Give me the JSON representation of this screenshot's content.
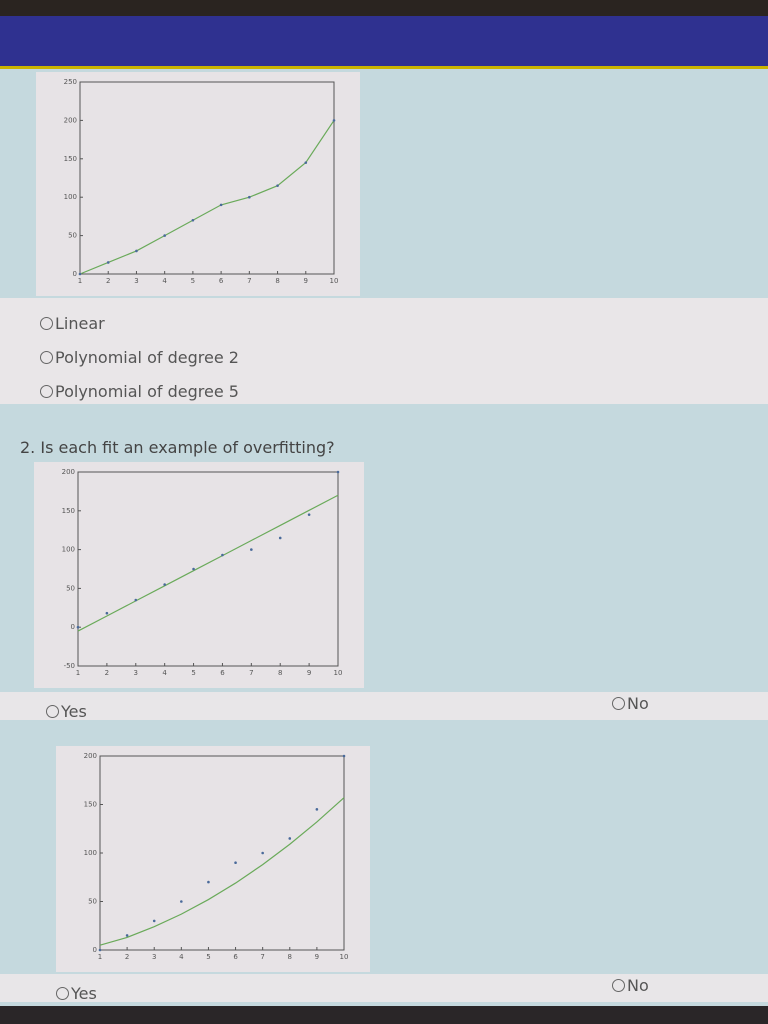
{
  "question1": {
    "options": [
      "Linear",
      "Polynomial of degree 2",
      "Polynomial of degree 5"
    ]
  },
  "question2": {
    "title": "2. Is each fit an example of overfitting?",
    "fits": [
      {
        "yes_label": "Yes",
        "no_label": "No"
      },
      {
        "yes_label": "Yes",
        "no_label": "No"
      }
    ]
  },
  "colors": {
    "fit_line": "#6aaa5a",
    "points": "#4a6a9a",
    "header": "#2f3190",
    "accent_line": "#c9b400"
  },
  "chart_data": [
    {
      "type": "line",
      "x": [
        1,
        2,
        3,
        4,
        5,
        6,
        7,
        8,
        9,
        10
      ],
      "points": [
        0,
        15,
        30,
        50,
        70,
        90,
        100,
        115,
        145,
        200
      ],
      "fit": [
        0,
        15,
        30,
        50,
        70,
        90,
        100,
        115,
        145,
        200
      ],
      "xlim": [
        1,
        10
      ],
      "ylim": [
        0,
        250
      ],
      "yticks": [
        "0",
        "50",
        "100",
        "150",
        "200",
        "250"
      ],
      "xticks": [
        "1",
        "2",
        "3",
        "4",
        "5",
        "6",
        "7",
        "8",
        "9",
        "10"
      ],
      "grid": false
    },
    {
      "type": "line",
      "x": [
        1,
        2,
        3,
        4,
        5,
        6,
        7,
        8,
        9,
        10
      ],
      "points": [
        0,
        18,
        35,
        55,
        75,
        93,
        100,
        115,
        145,
        200
      ],
      "fit": [
        -5,
        14.4,
        33.9,
        53.3,
        72.8,
        92.2,
        111.7,
        131.1,
        150.6,
        170
      ],
      "xlim": [
        1,
        10
      ],
      "ylim": [
        -50,
        200
      ],
      "yticks": [
        "-50",
        "0",
        "50",
        "100",
        "150",
        "200"
      ],
      "xticks": [
        "1",
        "2",
        "3",
        "4",
        "5",
        "6",
        "7",
        "8",
        "9",
        "10"
      ],
      "grid": false
    },
    {
      "type": "line",
      "x": [
        1,
        2,
        3,
        4,
        5,
        6,
        7,
        8,
        9,
        10
      ],
      "points": [
        0,
        15,
        30,
        50,
        70,
        90,
        100,
        115,
        145,
        200
      ],
      "fit": [
        5,
        13,
        24,
        37,
        52,
        69,
        88,
        109,
        132,
        157
      ],
      "xlim": [
        1,
        10
      ],
      "ylim": [
        0,
        200
      ],
      "yticks": [
        "0",
        "50",
        "100",
        "150",
        "200"
      ],
      "xticks": [
        "1",
        "2",
        "3",
        "4",
        "5",
        "6",
        "7",
        "8",
        "9",
        "10"
      ],
      "grid": false
    }
  ]
}
